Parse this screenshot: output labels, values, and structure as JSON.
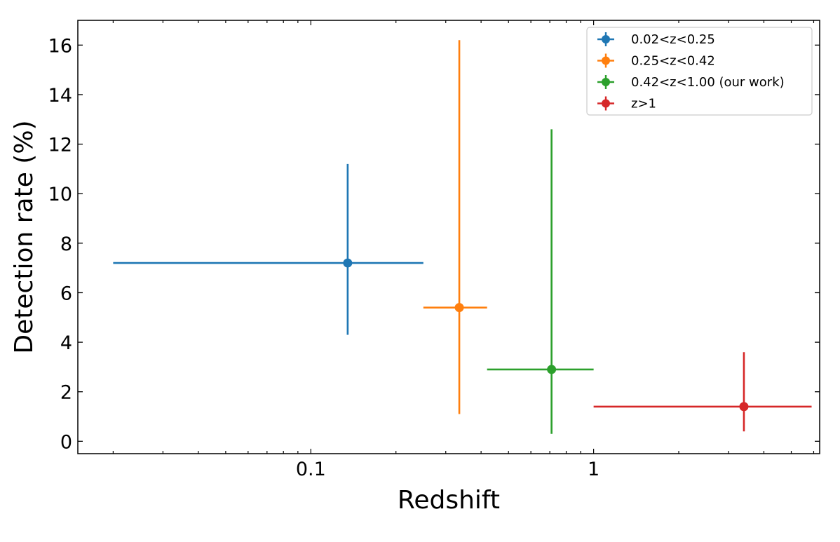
{
  "chart_data": {
    "type": "scatter",
    "title": "",
    "xlabel": "Redshift",
    "ylabel": "Detection rate (%)",
    "x_scale": "log",
    "xlim": [
      0.015,
      6.3
    ],
    "ylim": [
      -0.5,
      17
    ],
    "x_ticks": [
      {
        "value": 0.1,
        "label": "0.1"
      },
      {
        "value": 1,
        "label": "1"
      }
    ],
    "y_ticks": [
      {
        "value": 0,
        "label": "0"
      },
      {
        "value": 2,
        "label": "2"
      },
      {
        "value": 4,
        "label": "4"
      },
      {
        "value": 6,
        "label": "6"
      },
      {
        "value": 8,
        "label": "8"
      },
      {
        "value": 10,
        "label": "10"
      },
      {
        "value": 12,
        "label": "12"
      },
      {
        "value": 14,
        "label": "14"
      },
      {
        "value": 16,
        "label": "16"
      }
    ],
    "grid": false,
    "legend_position": "top-right",
    "series": [
      {
        "name": "0.02<z<0.25",
        "color": "#1f77b4",
        "x": 0.135,
        "y": 7.2,
        "x_range": [
          0.02,
          0.25
        ],
        "y_range": [
          4.3,
          11.2
        ]
      },
      {
        "name": "0.25<z<0.42",
        "color": "#ff7f0e",
        "x": 0.335,
        "y": 5.4,
        "x_range": [
          0.25,
          0.42
        ],
        "y_range": [
          1.1,
          16.2
        ]
      },
      {
        "name": "0.42<z<1.00 (our work)",
        "color": "#2ca02c",
        "x": 0.71,
        "y": 2.9,
        "x_range": [
          0.42,
          1.0
        ],
        "y_range": [
          0.3,
          12.6
        ]
      },
      {
        "name": "z>1",
        "color": "#d62728",
        "x": 3.4,
        "y": 1.4,
        "x_range": [
          1.0,
          5.9
        ],
        "y_range": [
          0.4,
          3.6
        ]
      }
    ]
  }
}
